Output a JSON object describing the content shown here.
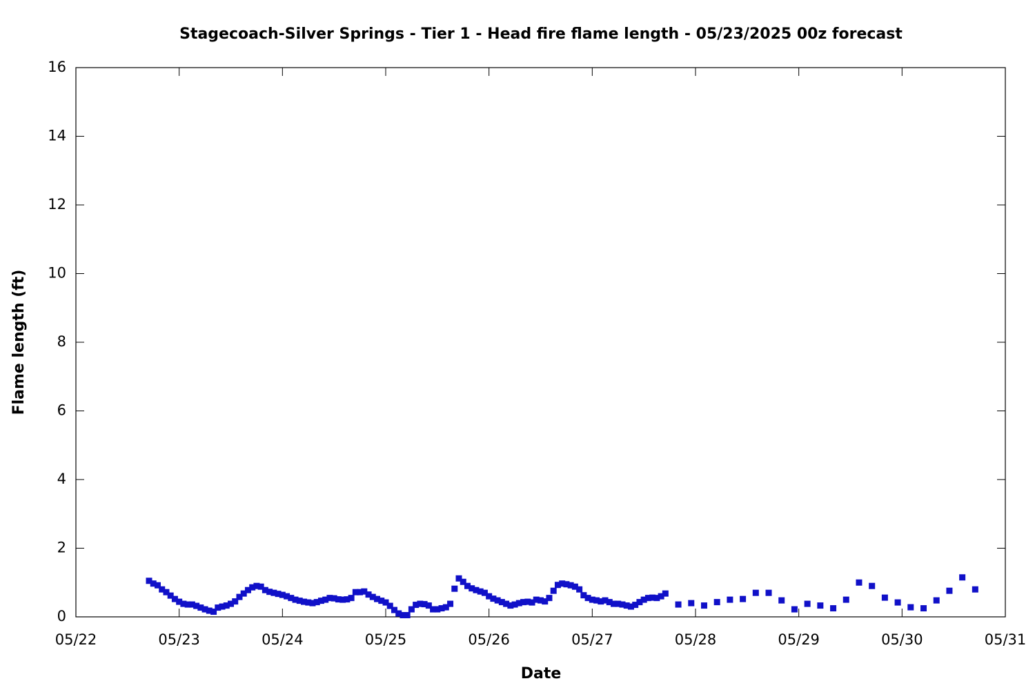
{
  "chart_data": {
    "type": "scatter",
    "title": "Stagecoach-Silver Springs - Tier 1 - Head fire flame length - 05/23/2025 00z forecast",
    "xlabel": "Date",
    "ylabel": "Flame length (ft)",
    "xlim": [
      0,
      216
    ],
    "ylim": [
      0,
      16
    ],
    "xticks": [
      {
        "value": 0,
        "label": "05/22"
      },
      {
        "value": 24,
        "label": "05/23"
      },
      {
        "value": 48,
        "label": "05/24"
      },
      {
        "value": 72,
        "label": "05/25"
      },
      {
        "value": 96,
        "label": "05/26"
      },
      {
        "value": 120,
        "label": "05/27"
      },
      {
        "value": 144,
        "label": "05/28"
      },
      {
        "value": 168,
        "label": "05/29"
      },
      {
        "value": 192,
        "label": "05/30"
      },
      {
        "value": 216,
        "label": "05/31"
      }
    ],
    "yticks": [
      0,
      2,
      4,
      6,
      8,
      10,
      12,
      14,
      16
    ],
    "color": "#1010c8",
    "x": [
      17,
      18,
      19,
      20,
      21,
      22,
      23,
      24,
      25,
      26,
      27,
      28,
      29,
      30,
      31,
      32,
      33,
      34,
      35,
      36,
      37,
      38,
      39,
      40,
      41,
      42,
      43,
      44,
      45,
      46,
      47,
      48,
      49,
      50,
      51,
      52,
      53,
      54,
      55,
      56,
      57,
      58,
      59,
      60,
      61,
      62,
      63,
      64,
      65,
      66,
      67,
      68,
      69,
      70,
      71,
      72,
      73,
      74,
      75,
      76,
      77,
      78,
      79,
      80,
      81,
      82,
      83,
      84,
      85,
      86,
      87,
      88,
      89,
      90,
      91,
      92,
      93,
      94,
      95,
      96,
      97,
      98,
      99,
      100,
      101,
      102,
      103,
      104,
      105,
      106,
      107,
      108,
      109,
      110,
      111,
      112,
      113,
      114,
      115,
      116,
      117,
      118,
      119,
      120,
      121,
      122,
      123,
      124,
      125,
      126,
      127,
      128,
      129,
      130,
      131,
      132,
      133,
      134,
      135,
      136,
      137,
      140,
      143,
      146,
      149,
      152,
      155,
      158,
      161,
      164,
      167,
      170,
      173,
      176,
      179,
      182,
      185,
      188,
      191,
      194,
      197,
      200,
      203,
      206,
      209
    ],
    "values": [
      1.05,
      0.97,
      0.92,
      0.8,
      0.72,
      0.62,
      0.52,
      0.44,
      0.38,
      0.36,
      0.36,
      0.32,
      0.27,
      0.22,
      0.18,
      0.15,
      0.27,
      0.3,
      0.33,
      0.38,
      0.45,
      0.58,
      0.68,
      0.78,
      0.86,
      0.9,
      0.88,
      0.78,
      0.73,
      0.7,
      0.67,
      0.64,
      0.6,
      0.55,
      0.5,
      0.47,
      0.44,
      0.42,
      0.4,
      0.43,
      0.47,
      0.5,
      0.55,
      0.54,
      0.51,
      0.5,
      0.51,
      0.55,
      0.72,
      0.72,
      0.74,
      0.65,
      0.58,
      0.52,
      0.47,
      0.42,
      0.32,
      0.2,
      0.1,
      0.05,
      0.05,
      0.22,
      0.35,
      0.38,
      0.37,
      0.33,
      0.22,
      0.22,
      0.25,
      0.28,
      0.38,
      0.82,
      1.12,
      1.02,
      0.9,
      0.83,
      0.78,
      0.74,
      0.7,
      0.6,
      0.53,
      0.48,
      0.43,
      0.38,
      0.33,
      0.36,
      0.4,
      0.43,
      0.44,
      0.42,
      0.5,
      0.48,
      0.45,
      0.55,
      0.76,
      0.93,
      0.97,
      0.95,
      0.92,
      0.88,
      0.8,
      0.63,
      0.55,
      0.5,
      0.48,
      0.45,
      0.48,
      0.43,
      0.38,
      0.38,
      0.36,
      0.33,
      0.3,
      0.35,
      0.43,
      0.5,
      0.55,
      0.56,
      0.55,
      0.6,
      0.68,
      0.36,
      0.4,
      0.33,
      0.43,
      0.5,
      0.52,
      0.7,
      0.7,
      0.48,
      0.22,
      0.38,
      0.33,
      0.25,
      0.5,
      1.0,
      0.9,
      0.56,
      0.42,
      0.28,
      0.25,
      0.48,
      0.76,
      1.15,
      0.8
    ]
  }
}
